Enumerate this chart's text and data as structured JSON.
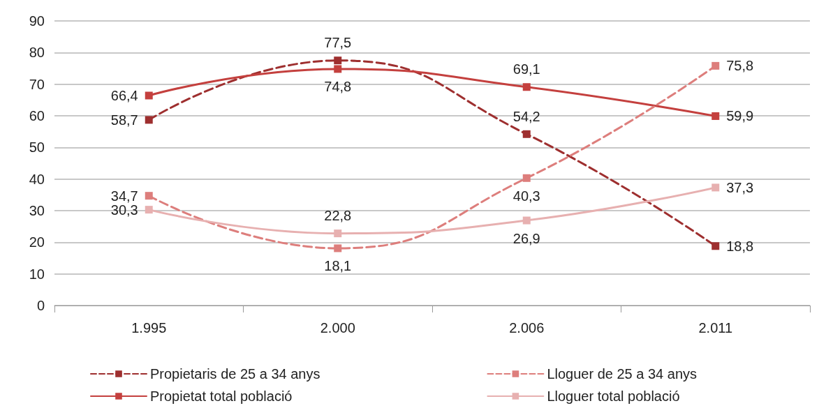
{
  "chart_data": {
    "type": "line",
    "categories": [
      "1.995",
      "2.000",
      "2.006",
      "2.011"
    ],
    "series": [
      {
        "name": "Propietaris de 25 a 34 anys",
        "color": "#9e2f2f",
        "line_style": "dashed",
        "values": [
          58.7,
          77.5,
          54.2,
          18.8
        ],
        "value_labels": [
          "58,7",
          "77,5",
          "54,2",
          "18,8"
        ]
      },
      {
        "name": "Propietat total població",
        "color": "#c4403e",
        "line_style": "solid",
        "values": [
          66.4,
          74.8,
          69.1,
          59.9
        ],
        "value_labels": [
          "66,4",
          "74,8",
          "69,1",
          "59,9"
        ]
      },
      {
        "name": "Lloguer de 25 a 34 anys",
        "color": "#dd7e7c",
        "line_style": "dashed",
        "values": [
          34.7,
          18.1,
          40.3,
          75.8
        ],
        "value_labels": [
          "34,7",
          "18,1",
          "40,3",
          "75,8"
        ]
      },
      {
        "name": "Lloguer total població",
        "color": "#e7b0b0",
        "line_style": "solid",
        "values": [
          30.3,
          22.8,
          26.9,
          37.3
        ],
        "value_labels": [
          "30,3",
          "22,8",
          "26,9",
          "37,3"
        ]
      }
    ],
    "ylim": [
      0,
      90
    ],
    "yticks": [
      0,
      10,
      20,
      30,
      40,
      50,
      60,
      70,
      80,
      90
    ],
    "grid": "y",
    "legend": "bottom",
    "marker": "square"
  }
}
